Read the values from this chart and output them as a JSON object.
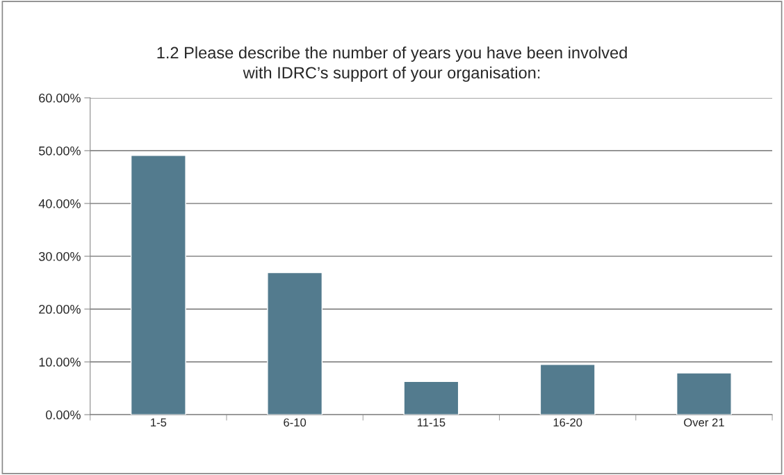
{
  "chart_data": {
    "type": "bar",
    "title": "1.2 Please describe the number of years you have been involved\nwith IDRC’s support of your organisation:",
    "categories": [
      "1-5",
      "6-10",
      "11-15",
      "16-20",
      "Over 21"
    ],
    "values": [
      49.1,
      26.9,
      6.3,
      9.5,
      7.9
    ],
    "color": "#537b8e",
    "ylim": [
      0,
      60
    ],
    "yticks": [
      {
        "value": 0,
        "label": "0.00%"
      },
      {
        "value": 10,
        "label": "10.00%"
      },
      {
        "value": 20,
        "label": "20.00%"
      },
      {
        "value": 30,
        "label": "30.00%"
      },
      {
        "value": 40,
        "label": "40.00%"
      },
      {
        "value": 50,
        "label": "50.00%"
      },
      {
        "value": 60,
        "label": "60.00%"
      }
    ],
    "grid": "y",
    "legend": false
  }
}
